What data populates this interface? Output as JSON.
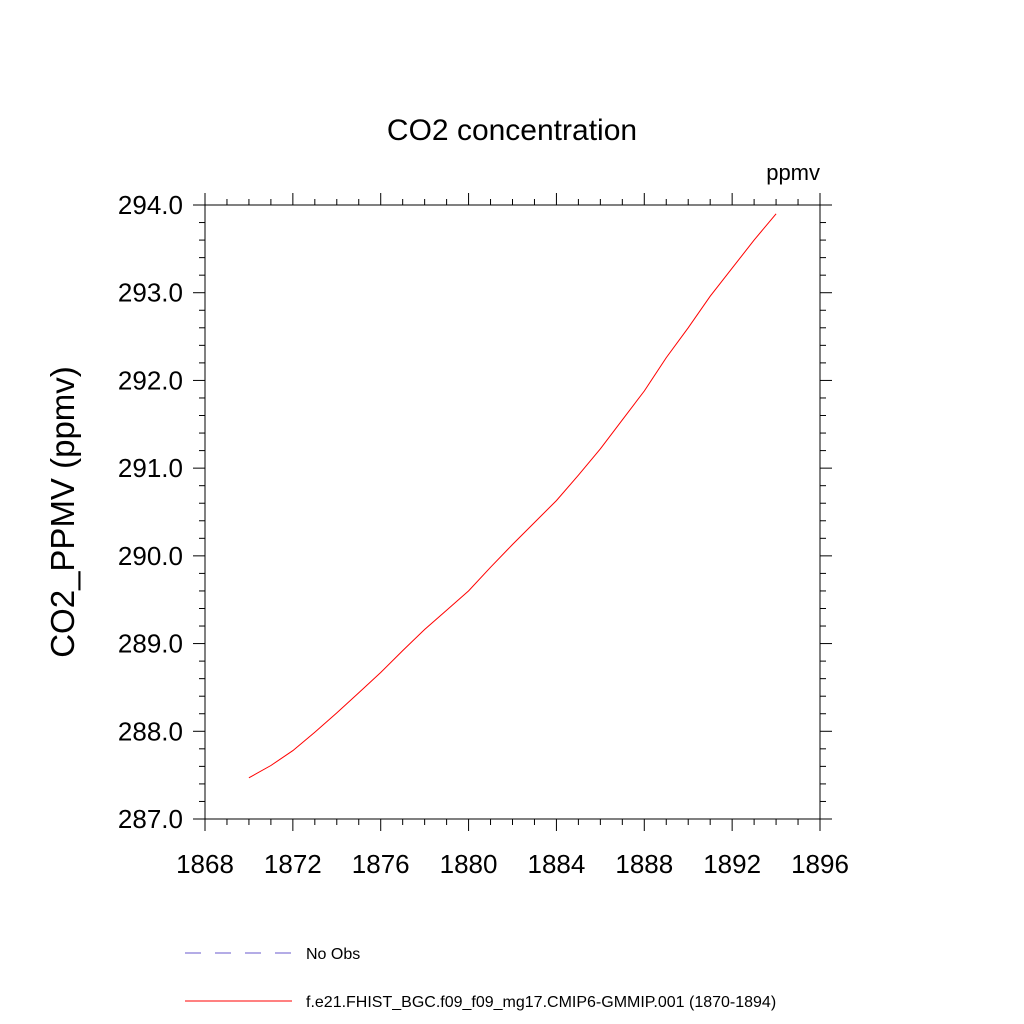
{
  "chart_data": {
    "type": "line",
    "title": "CO2 concentration",
    "units_label": "ppmv",
    "ylabel": "CO2_PPMV  (ppmv)",
    "xlabel": "",
    "xlim": [
      1868,
      1896
    ],
    "ylim": [
      287.0,
      294.0
    ],
    "x_ticks": [
      1868,
      1872,
      1876,
      1880,
      1884,
      1888,
      1892,
      1896
    ],
    "x_tick_labels": [
      "1868",
      "1872",
      "1876",
      "1880",
      "1884",
      "1888",
      "1892",
      "1896"
    ],
    "y_ticks": [
      287.0,
      288.0,
      289.0,
      290.0,
      291.0,
      292.0,
      293.0,
      294.0
    ],
    "y_tick_labels": [
      "287.0",
      "288.0",
      "289.0",
      "290.0",
      "291.0",
      "292.0",
      "293.0",
      "294.0"
    ],
    "grid": false,
    "series": [
      {
        "name": "f.e21.FHIST_BGC.f09_f09_mg17.CMIP6-GMMIP.001 (1870-1894)",
        "color": "#ff0000",
        "style": "solid",
        "x": [
          1870,
          1871,
          1872,
          1873,
          1874,
          1875,
          1876,
          1877,
          1878,
          1879,
          1880,
          1881,
          1882,
          1883,
          1884,
          1885,
          1886,
          1887,
          1888,
          1889,
          1890,
          1891,
          1892,
          1893,
          1894
        ],
        "values": [
          287.47,
          287.61,
          287.78,
          287.99,
          288.21,
          288.44,
          288.67,
          288.92,
          289.16,
          289.38,
          289.6,
          289.87,
          290.13,
          290.38,
          290.63,
          290.92,
          291.22,
          291.55,
          291.88,
          292.26,
          292.6,
          292.96,
          293.28,
          293.6,
          293.9
        ]
      }
    ],
    "legend": [
      {
        "label": "No Obs",
        "color": "#6a5acd",
        "style": "dashed"
      },
      {
        "label": "f.e21.FHIST_BGC.f09_f09_mg17.CMIP6-GMMIP.001 (1870-1894)",
        "color": "#ff0000",
        "style": "solid"
      }
    ],
    "legend_position": "bottom"
  }
}
